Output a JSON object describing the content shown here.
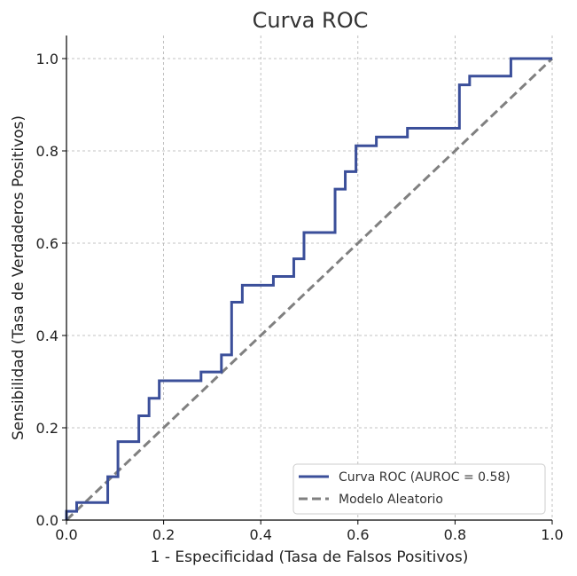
{
  "chart_data": {
    "type": "line",
    "title": "Curva ROC",
    "xlabel": "1 - Especificidad (Tasa de Falsos Positivos)",
    "ylabel": "Sensibilidad (Tasa de Verdaderos Positivos)",
    "xlim": [
      0.0,
      1.0
    ],
    "ylim": [
      0.0,
      1.05
    ],
    "xticks": [
      0.0,
      0.2,
      0.4,
      0.6,
      0.8,
      1.0
    ],
    "yticks": [
      0.0,
      0.2,
      0.4,
      0.6,
      0.8,
      1.0
    ],
    "xtick_labels": [
      "0.0",
      "0.2",
      "0.4",
      "0.6",
      "0.8",
      "1.0"
    ],
    "ytick_labels": [
      "0.0",
      "0.2",
      "0.4",
      "0.6",
      "0.8",
      "1.0"
    ],
    "grid": true,
    "legend_position": "lower-right",
    "series": [
      {
        "name": "Curva ROC (AUROC = 0.58)",
        "color": "#3b4f9a",
        "style": "solid",
        "x": [
          0.0,
          0.0,
          0.021,
          0.021,
          0.085,
          0.085,
          0.106,
          0.106,
          0.149,
          0.149,
          0.17,
          0.17,
          0.191,
          0.191,
          0.277,
          0.277,
          0.319,
          0.319,
          0.34,
          0.34,
          0.362,
          0.362,
          0.426,
          0.426,
          0.468,
          0.468,
          0.489,
          0.489,
          0.553,
          0.553,
          0.574,
          0.574,
          0.596,
          0.596,
          0.638,
          0.638,
          0.702,
          0.702,
          0.809,
          0.809,
          0.83,
          0.83,
          0.915,
          0.915,
          1.0
        ],
        "y": [
          0.0,
          0.019,
          0.019,
          0.038,
          0.038,
          0.094,
          0.094,
          0.17,
          0.17,
          0.226,
          0.226,
          0.264,
          0.264,
          0.302,
          0.302,
          0.321,
          0.321,
          0.358,
          0.358,
          0.472,
          0.472,
          0.509,
          0.509,
          0.528,
          0.528,
          0.566,
          0.566,
          0.623,
          0.623,
          0.717,
          0.717,
          0.755,
          0.755,
          0.811,
          0.811,
          0.83,
          0.83,
          0.849,
          0.849,
          0.943,
          0.943,
          0.962,
          0.962,
          1.0,
          1.0
        ]
      },
      {
        "name": "Modelo Aleatorio",
        "color": "#808080",
        "style": "dashed",
        "x": [
          0.0,
          1.0
        ],
        "y": [
          0.0,
          1.0
        ]
      }
    ]
  }
}
